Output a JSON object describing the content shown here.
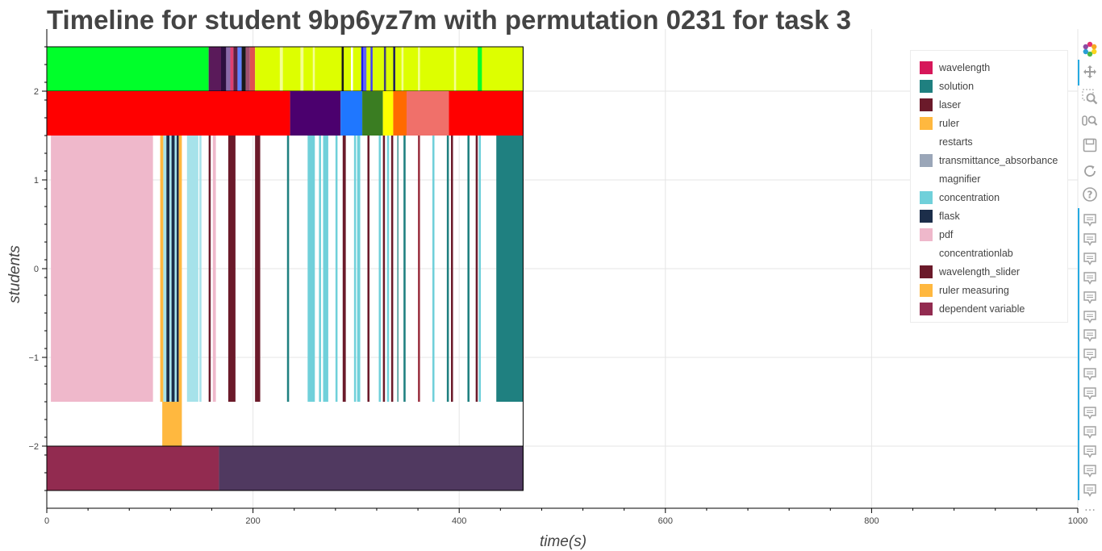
{
  "chart_data": {
    "type": "timeline",
    "title": "Timeline for student 9bp6yz7m with permutation 0231 for task 3",
    "xlabel": "time(s)",
    "ylabel": "students",
    "xlim": [
      0,
      1000
    ],
    "ylim": [
      -2.7,
      2.7
    ],
    "x_ticks": [
      0,
      200,
      400,
      600,
      800,
      1000
    ],
    "y_ticks": [
      2,
      1,
      0,
      -1,
      -2
    ],
    "x_tick_labels": [
      "0",
      "200",
      "400",
      "600",
      "800",
      "1000"
    ],
    "y_tick_labels": [
      "2",
      "1",
      "0",
      "−1",
      "−2"
    ],
    "grid": true,
    "legend_placement": "top-right",
    "rows": [
      {
        "id": "row_top",
        "y_range": [
          2.0,
          2.5
        ],
        "outlined": true,
        "segments": [
          {
            "start": 0,
            "end": 157,
            "color": "#00ff2a"
          },
          {
            "start": 157,
            "end": 169,
            "color": "#5a1a5a"
          },
          {
            "start": 169,
            "end": 174,
            "color": "#2d1040"
          },
          {
            "start": 174,
            "end": 178,
            "color": "#8a6aaa"
          },
          {
            "start": 178,
            "end": 181,
            "color": "#e04070"
          },
          {
            "start": 181,
            "end": 185,
            "color": "#602040"
          },
          {
            "start": 185,
            "end": 189,
            "color": "#6080ff"
          },
          {
            "start": 189,
            "end": 193,
            "color": "#1a1a1a"
          },
          {
            "start": 193,
            "end": 197,
            "color": "#a05070"
          },
          {
            "start": 197,
            "end": 202,
            "color": "#e05050"
          },
          {
            "start": 202,
            "end": 462,
            "color": "#ddff00"
          },
          {
            "start": 226,
            "end": 229,
            "color": "#f4ff90"
          },
          {
            "start": 246,
            "end": 249,
            "color": "#f4ff90"
          },
          {
            "start": 258,
            "end": 260,
            "color": "#f4ff90"
          },
          {
            "start": 286,
            "end": 288,
            "color": "#1a1a1a"
          },
          {
            "start": 295,
            "end": 297,
            "color": "#ffffff"
          },
          {
            "start": 305,
            "end": 307,
            "color": "#1a1aff"
          },
          {
            "start": 307,
            "end": 310,
            "color": "#6060ff"
          },
          {
            "start": 314,
            "end": 316,
            "color": "#4040ff"
          },
          {
            "start": 327,
            "end": 329,
            "color": "#404080"
          },
          {
            "start": 336,
            "end": 338,
            "color": "#202060"
          },
          {
            "start": 344,
            "end": 346,
            "color": "#f4ff90"
          },
          {
            "start": 360,
            "end": 362,
            "color": "#f4ff90"
          },
          {
            "start": 395,
            "end": 397,
            "color": "#f4ff90"
          },
          {
            "start": 418,
            "end": 422,
            "color": "#00ff2a"
          }
        ]
      },
      {
        "id": "row_two",
        "y_range": [
          1.5,
          2.0
        ],
        "segments": [
          {
            "start": 0,
            "end": 236,
            "color": "#ff0000"
          },
          {
            "start": 236,
            "end": 285,
            "color": "#4b006e"
          },
          {
            "start": 285,
            "end": 306,
            "color": "#1f77ff"
          },
          {
            "start": 306,
            "end": 326,
            "color": "#3a7d22"
          },
          {
            "start": 326,
            "end": 336,
            "color": "#ffff00"
          },
          {
            "start": 336,
            "end": 349,
            "color": "#ff6a00"
          },
          {
            "start": 349,
            "end": 390,
            "color": "#f0706a"
          },
          {
            "start": 390,
            "end": 462,
            "color": "#ff0000"
          }
        ]
      },
      {
        "id": "row_main",
        "y_range": [
          -1.5,
          1.5
        ],
        "segments": [
          {
            "start": 4,
            "end": 103,
            "color": "#efb8cb"
          },
          {
            "start": 110,
            "end": 113,
            "color": "#ffb83f"
          },
          {
            "start": 113,
            "end": 116,
            "color": "#a6e2ea"
          },
          {
            "start": 116,
            "end": 119,
            "color": "#1c2e4a"
          },
          {
            "start": 119,
            "end": 121,
            "color": "#a6e2ea"
          },
          {
            "start": 121,
            "end": 124,
            "color": "#1c2e4a"
          },
          {
            "start": 124,
            "end": 126,
            "color": "#a6e2ea"
          },
          {
            "start": 126,
            "end": 128,
            "color": "#1c2e4a"
          },
          {
            "start": 128,
            "end": 131,
            "color": "#ffb83f"
          },
          {
            "start": 136,
            "end": 147,
            "color": "#a6e2ea"
          },
          {
            "start": 148,
            "end": 150,
            "color": "#a6e2ea"
          },
          {
            "start": 157,
            "end": 159,
            "color": "#6b1a2a"
          },
          {
            "start": 161,
            "end": 164,
            "color": "#efb8cb"
          },
          {
            "start": 176,
            "end": 183,
            "color": "#6b1a2a"
          },
          {
            "start": 202,
            "end": 207,
            "color": "#6b1a2a"
          },
          {
            "start": 233,
            "end": 235,
            "color": "#1f8080"
          },
          {
            "start": 253,
            "end": 260,
            "color": "#70d0da"
          },
          {
            "start": 264,
            "end": 266,
            "color": "#70d0da"
          },
          {
            "start": 268,
            "end": 273,
            "color": "#70d0da"
          },
          {
            "start": 280,
            "end": 282,
            "color": "#70d0da"
          },
          {
            "start": 287,
            "end": 290,
            "color": "#6b1a2a"
          },
          {
            "start": 298,
            "end": 300,
            "color": "#70d0da"
          },
          {
            "start": 301,
            "end": 304,
            "color": "#70d0da"
          },
          {
            "start": 311,
            "end": 313,
            "color": "#6b1a2a"
          },
          {
            "start": 322,
            "end": 324,
            "color": "#70d0da"
          },
          {
            "start": 326,
            "end": 328,
            "color": "#6b1a2a"
          },
          {
            "start": 330,
            "end": 332,
            "color": "#70d0da"
          },
          {
            "start": 334,
            "end": 336,
            "color": "#6b1a2a"
          },
          {
            "start": 340,
            "end": 341,
            "color": "#1f8080"
          },
          {
            "start": 346,
            "end": 348,
            "color": "#1f8080"
          },
          {
            "start": 360,
            "end": 362,
            "color": "#9a3040"
          },
          {
            "start": 374,
            "end": 376,
            "color": "#70d0da"
          },
          {
            "start": 388,
            "end": 390,
            "color": "#1f8080"
          },
          {
            "start": 392,
            "end": 394,
            "color": "#6b1a2a"
          },
          {
            "start": 408,
            "end": 410,
            "color": "#1f8080"
          },
          {
            "start": 416,
            "end": 418,
            "color": "#6b1a2a"
          },
          {
            "start": 419,
            "end": 421,
            "color": "#70d0da"
          },
          {
            "start": 436,
            "end": 462,
            "color": "#1f8080"
          }
        ]
      },
      {
        "id": "row_ruler",
        "y_range": [
          -2.0,
          -1.5
        ],
        "segments": [
          {
            "start": 112,
            "end": 131,
            "color": "#ffb83f"
          }
        ]
      },
      {
        "id": "row_bottom",
        "y_range": [
          -2.5,
          -2.0
        ],
        "outlined": true,
        "segments": [
          {
            "start": 0,
            "end": 167,
            "color": "#922b50"
          },
          {
            "start": 167,
            "end": 462,
            "color": "#503960"
          }
        ]
      }
    ],
    "series": [
      {
        "name": "wavelength",
        "color": "#d6175a"
      },
      {
        "name": "solution",
        "color": "#1f8080"
      },
      {
        "name": "laser",
        "color": "#6b1a2a"
      },
      {
        "name": "ruler",
        "color": "#ffb83f"
      },
      {
        "name": "restarts",
        "color": "#ffffff"
      },
      {
        "name": "transmittance_absorbance",
        "color": "#9aa6b8"
      },
      {
        "name": "magnifier",
        "color": "#ffffff"
      },
      {
        "name": "concentration",
        "color": "#70d0da"
      },
      {
        "name": "flask",
        "color": "#1c2e4a"
      },
      {
        "name": "pdf",
        "color": "#efb8cb"
      },
      {
        "name": "concentrationlab",
        "color": "#ffffff"
      },
      {
        "name": "wavelength_slider",
        "color": "#6b1a2a"
      },
      {
        "name": "ruler measuring",
        "color": "#ffb83f"
      },
      {
        "name": "dependent variable",
        "color": "#922b50"
      }
    ]
  },
  "toolbar": {
    "tools": [
      {
        "icon": "bokeh-logo-icon"
      },
      {
        "icon": "pan-icon"
      },
      {
        "icon": "box-zoom-icon"
      },
      {
        "icon": "wheel-zoom-icon"
      },
      {
        "icon": "save-icon"
      },
      {
        "icon": "reset-icon"
      },
      {
        "icon": "help-icon"
      },
      {
        "icon": "hover-icon",
        "repeat": 15
      },
      {
        "icon": "more-icon",
        "text": "…"
      }
    ]
  }
}
